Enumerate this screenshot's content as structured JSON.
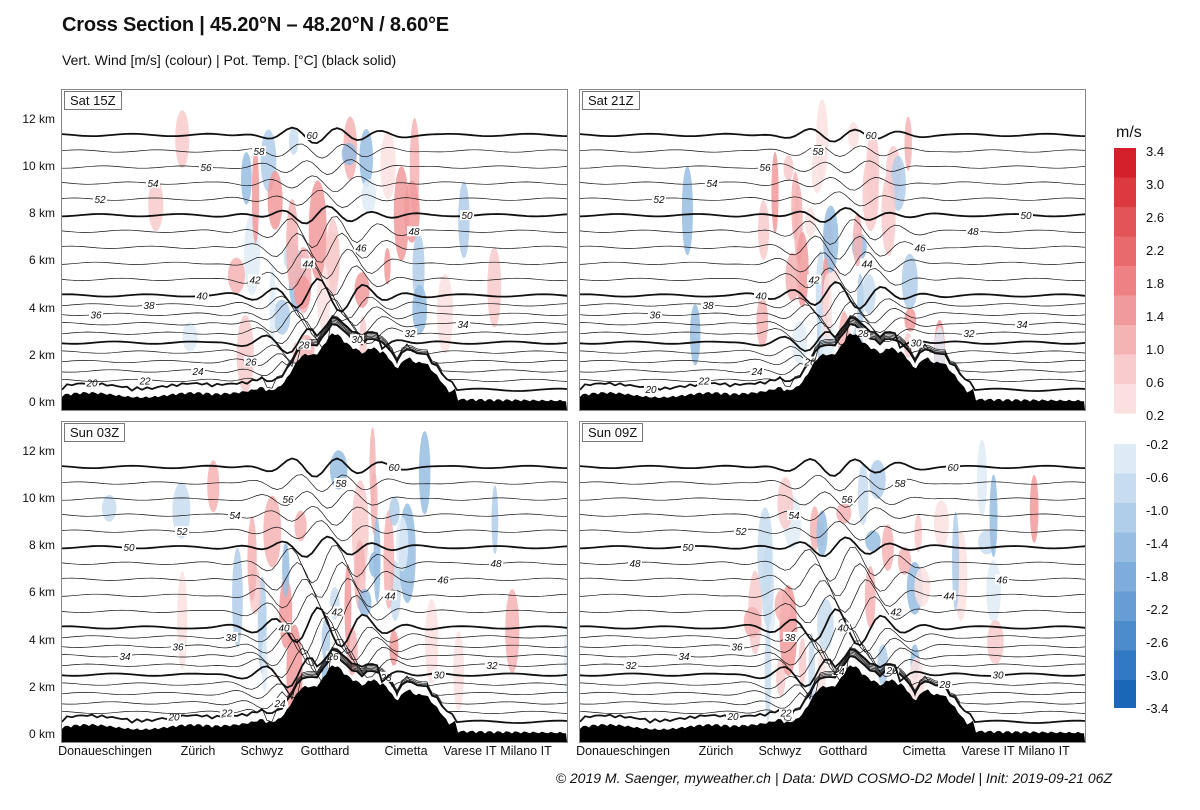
{
  "title": "Cross Section | 45.20°N – 48.20°N / 8.60°E",
  "subtitle": "Vert. Wind [m/s] (colour) | Pot. Temp. [°C] (black solid)",
  "footer": "© 2019 M. Saenger, myweather.ch | Data: DWD COSMO-D2 Model | Init: 2019-09-21 06Z",
  "colorbar": {
    "title": "m/s",
    "positive_labels": [
      "3.4",
      "3.0",
      "2.6",
      "2.2",
      "1.8",
      "1.4",
      "1.0",
      "0.6",
      "0.2"
    ],
    "negative_labels": [
      "-0.2",
      "-0.6",
      "-1.0",
      "-1.4",
      "-1.8",
      "-2.2",
      "-2.6",
      "-3.0",
      "-3.4"
    ],
    "positive_colors": [
      "#d4202a",
      "#dc3a40",
      "#e25458",
      "#e86a6c",
      "#ed8183",
      "#f19a9b",
      "#f5b3b4",
      "#f8cbcc",
      "#fbe0e0"
    ],
    "negative_colors": [
      "#deebf6",
      "#c8dcf0",
      "#b0cde9",
      "#98bde2",
      "#7faddb",
      "#669dd4",
      "#4c8ccc",
      "#3179c2",
      "#1a66b7"
    ]
  },
  "chart_data": {
    "type": "cross-section",
    "ylabel_unit": "km",
    "y_ticks": [
      "12 km",
      "10 km",
      "8 km",
      "6 km",
      "4 km",
      "2 km",
      "0 km"
    ],
    "x_ticks": [
      "Donaueschingen",
      "Zürich",
      "Schwyz",
      "Gotthard",
      "Cimetta",
      "Varese IT",
      "Milano IT"
    ],
    "ylim": [
      0,
      13
    ],
    "panels": [
      {
        "label": "Sat 15Z",
        "wave": 1.0
      },
      {
        "label": "Sat 21Z",
        "wave": 0.8
      },
      {
        "label": "Sun 03Z",
        "wave": 1.2
      },
      {
        "label": "Sun 09Z",
        "wave": 1.1
      }
    ],
    "theta_levels": [
      20,
      22,
      24,
      26,
      28,
      30,
      32,
      34,
      36,
      38,
      40,
      42,
      44,
      46,
      48,
      50,
      52,
      54,
      56,
      58,
      60
    ],
    "theta_labels_shown": [
      "20",
      "22",
      "24",
      "26",
      "28",
      "30",
      "32",
      "34",
      "36",
      "38",
      "40",
      "42",
      "44",
      "46",
      "48",
      "50",
      "52",
      "54",
      "56",
      "58",
      "60"
    ]
  }
}
